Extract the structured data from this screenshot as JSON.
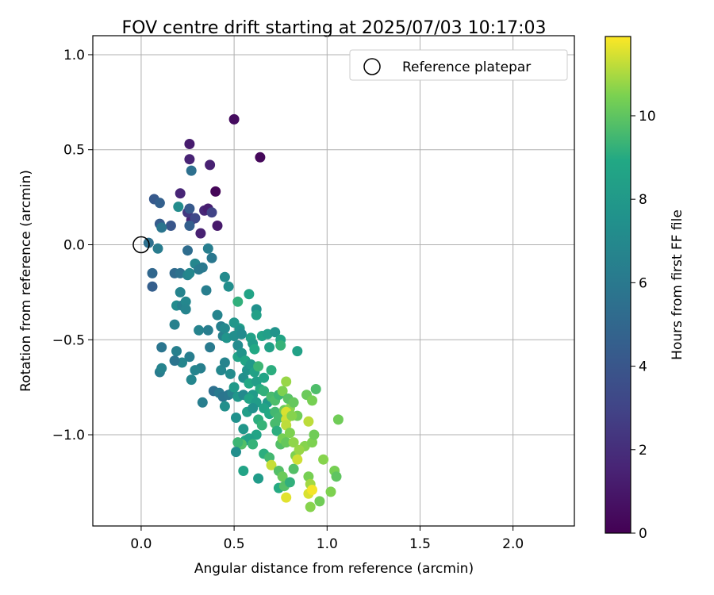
{
  "chart_data": {
    "type": "scatter",
    "title": "FOV centre drift starting at 2025/07/03 10:17:03",
    "xlabel": "Angular distance from reference (arcmin)",
    "ylabel": "Rotation from reference (arcmin)",
    "xlim": [
      -0.26,
      2.33
    ],
    "ylim": [
      -1.48,
      1.1
    ],
    "xticks": [
      0.0,
      0.5,
      1.0,
      1.5,
      2.0
    ],
    "xtick_labels": [
      "0.0",
      "0.5",
      "1.0",
      "1.5",
      "2.0"
    ],
    "yticks": [
      -1.0,
      -0.5,
      0.0,
      0.5,
      1.0
    ],
    "ytick_labels": [
      "−1.0",
      "−0.5",
      "0.0",
      "0.5",
      "1.0"
    ],
    "grid": true,
    "legend": {
      "position": "top-right",
      "entries": [
        "Reference platepar"
      ]
    },
    "reference_point": {
      "name": "Reference platepar",
      "x": 0.0,
      "y": 0.0
    },
    "colorbar": {
      "label": "Hours from first FF file",
      "colormap": "viridis",
      "range": [
        0,
        11.9
      ],
      "ticks": [
        0,
        2,
        4,
        6,
        8,
        10
      ],
      "tick_labels": [
        "0",
        "2",
        "4",
        "6",
        "8",
        "10"
      ]
    },
    "points": [
      [
        0.5,
        0.66,
        0.5
      ],
      [
        0.64,
        0.46,
        0.3
      ],
      [
        0.26,
        0.53,
        1.2
      ],
      [
        0.26,
        0.45,
        1.5
      ],
      [
        0.37,
        0.42,
        1.4
      ],
      [
        0.4,
        0.28,
        0.2
      ],
      [
        0.21,
        0.27,
        1.6
      ],
      [
        0.34,
        0.18,
        1.7
      ],
      [
        0.36,
        0.19,
        1.3
      ],
      [
        0.41,
        0.1,
        1.1
      ],
      [
        0.32,
        0.06,
        1.4
      ],
      [
        0.27,
        0.13,
        1.5
      ],
      [
        0.25,
        0.17,
        2.4
      ],
      [
        0.38,
        0.17,
        3.0
      ],
      [
        0.27,
        0.39,
        5.5
      ],
      [
        0.26,
        0.19,
        4.2
      ],
      [
        0.29,
        0.14,
        3.2
      ],
      [
        0.26,
        0.1,
        4.6
      ],
      [
        0.07,
        0.24,
        4.2
      ],
      [
        0.1,
        0.22,
        4.6
      ],
      [
        0.1,
        0.11,
        4.4
      ],
      [
        0.16,
        0.1,
        4.0
      ],
      [
        0.11,
        0.09,
        5.8
      ],
      [
        0.2,
        0.2,
        7.2
      ],
      [
        0.04,
        0.01,
        5.5
      ],
      [
        0.09,
        -0.02,
        6.2
      ],
      [
        0.25,
        -0.03,
        5.3
      ],
      [
        0.36,
        -0.02,
        6.3
      ],
      [
        0.38,
        -0.07,
        5.9
      ],
      [
        0.06,
        -0.15,
        5.0
      ],
      [
        0.06,
        -0.22,
        4.5
      ],
      [
        0.18,
        -0.15,
        5.2
      ],
      [
        0.21,
        -0.15,
        5.6
      ],
      [
        0.25,
        -0.16,
        6.6
      ],
      [
        0.26,
        -0.15,
        6.9
      ],
      [
        0.29,
        -0.1,
        6.8
      ],
      [
        0.31,
        -0.13,
        6.1
      ],
      [
        0.33,
        -0.12,
        6.0
      ],
      [
        0.35,
        -0.24,
        6.3
      ],
      [
        0.18,
        -0.42,
        6.5
      ],
      [
        0.19,
        -0.32,
        7.1
      ],
      [
        0.22,
        -0.32,
        6.4
      ],
      [
        0.21,
        -0.25,
        6.6
      ],
      [
        0.24,
        -0.3,
        6.9
      ],
      [
        0.24,
        -0.34,
        6.7
      ],
      [
        0.45,
        -0.17,
        7.1
      ],
      [
        0.47,
        -0.22,
        7.3
      ],
      [
        0.41,
        -0.37,
        6.7
      ],
      [
        0.43,
        -0.43,
        6.4
      ],
      [
        0.31,
        -0.45,
        6.6
      ],
      [
        0.36,
        -0.45,
        6.3
      ],
      [
        0.44,
        -0.48,
        6.5
      ],
      [
        0.45,
        -0.44,
        7.0
      ],
      [
        0.46,
        -0.49,
        7.7
      ],
      [
        0.5,
        -0.48,
        7.3
      ],
      [
        0.37,
        -0.54,
        6.1
      ],
      [
        0.32,
        -0.65,
        6.4
      ],
      [
        0.26,
        -0.59,
        6.3
      ],
      [
        0.29,
        -0.66,
        6.7
      ],
      [
        0.22,
        -0.62,
        6.8
      ],
      [
        0.19,
        -0.56,
        6.4
      ],
      [
        0.18,
        -0.61,
        5.7
      ],
      [
        0.11,
        -0.54,
        5.8
      ],
      [
        0.1,
        -0.67,
        6.2
      ],
      [
        0.11,
        -0.65,
        6.6
      ],
      [
        0.27,
        -0.71,
        6.8
      ],
      [
        0.33,
        -0.83,
        6.3
      ],
      [
        0.39,
        -0.77,
        5.5
      ],
      [
        0.43,
        -0.66,
        6.9
      ],
      [
        0.45,
        -0.62,
        6.7
      ],
      [
        0.48,
        -0.68,
        7.2
      ],
      [
        0.42,
        -0.78,
        6.1
      ],
      [
        0.44,
        -0.8,
        5.8
      ],
      [
        0.47,
        -0.79,
        5.9
      ],
      [
        0.49,
        -0.78,
        6.6
      ],
      [
        0.45,
        -0.85,
        7.4
      ],
      [
        0.5,
        -0.75,
        8.0
      ],
      [
        0.53,
        -0.44,
        8.5
      ],
      [
        0.53,
        -0.45,
        7.5
      ],
      [
        0.54,
        -0.47,
        7.1
      ],
      [
        0.5,
        -0.41,
        7.8
      ],
      [
        0.52,
        -0.3,
        9.2
      ],
      [
        0.58,
        -0.26,
        8.6
      ],
      [
        0.62,
        -0.34,
        7.5
      ],
      [
        0.62,
        -0.37,
        8.4
      ],
      [
        0.59,
        -0.49,
        8.5
      ],
      [
        0.6,
        -0.52,
        8.2
      ],
      [
        0.61,
        -0.55,
        8.9
      ],
      [
        0.65,
        -0.48,
        8.6
      ],
      [
        0.68,
        -0.47,
        8.3
      ],
      [
        0.72,
        -0.46,
        7.7
      ],
      [
        0.69,
        -0.54,
        8.5
      ],
      [
        0.75,
        -0.5,
        8.7
      ],
      [
        0.75,
        -0.53,
        9.3
      ],
      [
        0.84,
        -0.56,
        8.5
      ],
      [
        0.52,
        -0.53,
        7.1
      ],
      [
        0.52,
        -0.59,
        8.6
      ],
      [
        0.54,
        -0.57,
        7.7
      ],
      [
        0.56,
        -0.61,
        8.7
      ],
      [
        0.55,
        -0.7,
        7.4
      ],
      [
        0.57,
        -0.66,
        7.6
      ],
      [
        0.59,
        -0.63,
        8.0
      ],
      [
        0.61,
        -0.67,
        8.5
      ],
      [
        0.63,
        -0.64,
        9.4
      ],
      [
        0.58,
        -0.73,
        8.9
      ],
      [
        0.62,
        -0.72,
        8.3
      ],
      [
        0.64,
        -0.76,
        9.0
      ],
      [
        0.6,
        -0.79,
        8.1
      ],
      [
        0.52,
        -0.8,
        7.9
      ],
      [
        0.55,
        -0.79,
        7.0
      ],
      [
        0.58,
        -0.81,
        8.6
      ],
      [
        0.62,
        -0.83,
        8.2
      ],
      [
        0.66,
        -0.77,
        9.2
      ],
      [
        0.68,
        -0.83,
        8.0
      ],
      [
        0.7,
        -0.8,
        9.6
      ],
      [
        0.72,
        -0.82,
        9.7
      ],
      [
        0.74,
        -0.79,
        9.4
      ],
      [
        0.76,
        -0.77,
        10.5
      ],
      [
        0.78,
        -0.72,
        10.8
      ],
      [
        0.7,
        -0.66,
        9.1
      ],
      [
        0.66,
        -0.7,
        8.7
      ],
      [
        0.51,
        -0.91,
        7.5
      ],
      [
        0.55,
        -0.97,
        7.8
      ],
      [
        0.57,
        -0.88,
        8.3
      ],
      [
        0.6,
        -0.86,
        7.5
      ],
      [
        0.63,
        -0.92,
        9.1
      ],
      [
        0.65,
        -0.95,
        9.3
      ],
      [
        0.62,
        -1.0,
        8.7
      ],
      [
        0.66,
        -0.86,
        8.6
      ],
      [
        0.69,
        -0.89,
        8.9
      ],
      [
        0.72,
        -0.88,
        9.5
      ],
      [
        0.74,
        -0.91,
        9.6
      ],
      [
        0.77,
        -0.87,
        10.2
      ],
      [
        0.8,
        -0.86,
        10.6
      ],
      [
        0.79,
        -0.81,
        9.9
      ],
      [
        0.82,
        -0.83,
        10.1
      ],
      [
        0.84,
        -0.9,
        10.3
      ],
      [
        0.89,
        -0.79,
        10.2
      ],
      [
        0.92,
        -0.82,
        10.4
      ],
      [
        0.94,
        -0.76,
        9.7
      ],
      [
        0.78,
        -0.88,
        11.5
      ],
      [
        0.78,
        -0.92,
        11.4
      ],
      [
        0.78,
        -0.95,
        11.2
      ],
      [
        0.81,
        -0.9,
        10.6
      ],
      [
        0.9,
        -0.93,
        11.2
      ],
      [
        0.72,
        -0.94,
        9.6
      ],
      [
        0.73,
        -0.98,
        9.1
      ],
      [
        0.75,
        -1.05,
        9.8
      ],
      [
        0.76,
        -1.02,
        10.4
      ],
      [
        0.78,
        -1.04,
        10.1
      ],
      [
        0.8,
        -0.99,
        10.5
      ],
      [
        0.82,
        -1.04,
        10.7
      ],
      [
        0.88,
        -1.06,
        10.6
      ],
      [
        0.92,
        -1.04,
        10.5
      ],
      [
        0.93,
        -1.0,
        10.3
      ],
      [
        0.56,
        -1.03,
        8.8
      ],
      [
        0.58,
        -1.02,
        8.4
      ],
      [
        0.6,
        -1.05,
        9.3
      ],
      [
        0.54,
        -1.05,
        9.8
      ],
      [
        0.52,
        -1.04,
        9.4
      ],
      [
        0.51,
        -1.09,
        7.3
      ],
      [
        0.55,
        -1.19,
        8.6
      ],
      [
        0.63,
        -1.23,
        8.1
      ],
      [
        0.66,
        -1.1,
        9.1
      ],
      [
        0.69,
        -1.12,
        9.5
      ],
      [
        0.7,
        -1.16,
        11.3
      ],
      [
        0.74,
        -1.19,
        9.8
      ],
      [
        0.76,
        -1.22,
        10.2
      ],
      [
        0.74,
        -1.28,
        9.0
      ],
      [
        0.77,
        -1.27,
        9.8
      ],
      [
        0.78,
        -1.33,
        11.6
      ],
      [
        0.8,
        -1.25,
        9.2
      ],
      [
        0.82,
        -1.18,
        9.8
      ],
      [
        0.83,
        -1.11,
        10.5
      ],
      [
        0.85,
        -1.08,
        10.8
      ],
      [
        0.84,
        -1.13,
        11.4
      ],
      [
        0.9,
        -1.22,
        10.4
      ],
      [
        0.91,
        -1.26,
        10.9
      ],
      [
        0.9,
        -1.31,
        11.5
      ],
      [
        0.92,
        -1.29,
        11.8
      ],
      [
        0.91,
        -1.38,
        10.6
      ],
      [
        0.96,
        -1.35,
        10.3
      ],
      [
        0.98,
        -1.13,
        10.6
      ],
      [
        1.02,
        -1.3,
        10.5
      ],
      [
        1.04,
        -1.19,
        10.4
      ],
      [
        1.05,
        -1.22,
        10.0
      ],
      [
        1.06,
        -0.92,
        10.3
      ]
    ]
  }
}
